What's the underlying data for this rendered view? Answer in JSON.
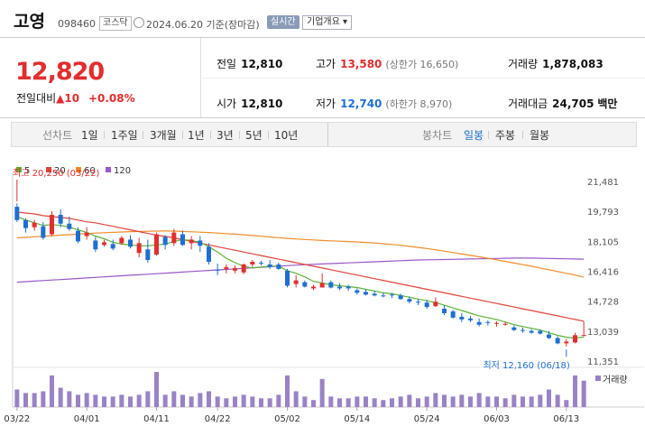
{
  "header": {
    "name": "고영",
    "code": "098460",
    "market": "코스닥",
    "date": "2024.06.20 기준(장마감)",
    "realtime": "실시간",
    "overview": "기업개요 ▾"
  },
  "price": {
    "current": "12,820",
    "change_label": "전일대비",
    "change_arrow": "▲",
    "change": "10",
    "change_pct": "+0.08%"
  },
  "stats": {
    "prev_close_label": "전일",
    "prev_close": "12,810",
    "open_label": "시가",
    "open": "12,810",
    "high_label": "고가",
    "high": "13,580",
    "upper_limit": "(상한가 16,650)",
    "low_label": "저가",
    "low": "12,740",
    "lower_limit": "(하한가 8,970)",
    "volume_label": "거래량",
    "volume": "1,878,083",
    "amount_label": "거래대금",
    "amount": "24,705",
    "amount_unit": "백만"
  },
  "toolbar": {
    "line_chart": "선차트",
    "periods": [
      "1일",
      "1주일",
      "3개월",
      "1년",
      "3년",
      "5년",
      "10년"
    ],
    "candle_chart": "봉차트",
    "candle_periods": [
      "일봉",
      "주봉",
      "월봉"
    ],
    "selected_candle": "일봉"
  },
  "colors": {
    "up": "#e12e2e",
    "down": "#1f6fd1",
    "ma5": "#5bb336",
    "ma20": "#e0453a",
    "ma60": "#f08c28",
    "ma120": "#9a59c9",
    "volume": "#9a82c6"
  },
  "chart_data": {
    "type": "candlestick",
    "legend": [
      "5",
      "20",
      "60",
      "120"
    ],
    "y_ticks": [
      "21,481",
      "19,793",
      "18,105",
      "16,416",
      "14,728",
      "13,039",
      "11,351"
    ],
    "y_range": [
      11351,
      21481
    ],
    "x_tick_labels": [
      "03/22",
      "04/01",
      "04/11",
      "04/22",
      "05/02",
      "05/14",
      "05/24",
      "06/03",
      "06/13"
    ],
    "x_tick_index": [
      0,
      8,
      16,
      23,
      31,
      39,
      47,
      55,
      63
    ],
    "high_annotation": "최고 20,250 (03/22)",
    "low_annotation": "최저 12,160 (06/18)",
    "volume_label": "거래량",
    "candles": [
      [
        20050,
        20250,
        19200,
        19300
      ],
      [
        19300,
        19400,
        18600,
        18850
      ],
      [
        18900,
        19300,
        18700,
        19150
      ],
      [
        18950,
        19200,
        18200,
        18300
      ],
      [
        18500,
        19800,
        18400,
        19600
      ],
      [
        19600,
        19900,
        18900,
        19100
      ],
      [
        19100,
        19500,
        18700,
        18800
      ],
      [
        18700,
        18900,
        18000,
        18100
      ],
      [
        18400,
        18900,
        18200,
        18600
      ],
      [
        18150,
        18350,
        17500,
        17650
      ],
      [
        17900,
        18200,
        17800,
        18050
      ],
      [
        17950,
        18200,
        17600,
        17700
      ],
      [
        18000,
        18400,
        17900,
        18300
      ],
      [
        18200,
        18450,
        17700,
        17800
      ],
      [
        17450,
        18300,
        17200,
        18000
      ],
      [
        17650,
        18200,
        16900,
        17050
      ],
      [
        17350,
        18600,
        17300,
        18500
      ],
      [
        18350,
        18450,
        17650,
        17900
      ],
      [
        18000,
        18800,
        17850,
        18600
      ],
      [
        18500,
        18700,
        17850,
        17900
      ],
      [
        18000,
        18400,
        17650,
        18200
      ],
      [
        18150,
        18400,
        17500,
        17850
      ],
      [
        17800,
        18000,
        16800,
        16950
      ],
      [
        16500,
        16850,
        16200,
        16450
      ],
      [
        16550,
        16800,
        16300,
        16650
      ],
      [
        16450,
        16750,
        16300,
        16600
      ],
      [
        16350,
        16850,
        16250,
        16800
      ],
      [
        16800,
        17050,
        16650,
        16950
      ],
      [
        16900,
        17000,
        16750,
        16850
      ],
      [
        16800,
        17050,
        16550,
        16650
      ],
      [
        16800,
        16900,
        16500,
        16550
      ],
      [
        16450,
        16550,
        15500,
        15600
      ],
      [
        15700,
        16200,
        15500,
        15900
      ],
      [
        15800,
        15900,
        15500,
        15550
      ],
      [
        15450,
        15650,
        15350,
        15550
      ],
      [
        15500,
        16300,
        15500,
        15750
      ],
      [
        15800,
        15900,
        15450,
        15500
      ],
      [
        15550,
        15750,
        15350,
        15450
      ],
      [
        15550,
        15650,
        15300,
        15450
      ],
      [
        15350,
        15450,
        15100,
        15200
      ],
      [
        15250,
        15400,
        15050,
        15100
      ],
      [
        15150,
        15300,
        15000,
        15050
      ],
      [
        15050,
        15200,
        14950,
        15000
      ],
      [
        15100,
        15200,
        14900,
        15050
      ],
      [
        15050,
        15150,
        14800,
        14850
      ],
      [
        14850,
        15000,
        14600,
        14700
      ],
      [
        14700,
        14850,
        14500,
        14650
      ],
      [
        14650,
        14800,
        14300,
        14400
      ],
      [
        14450,
        14950,
        14400,
        14700
      ],
      [
        14300,
        14500,
        13950,
        14050
      ],
      [
        14150,
        14250,
        13750,
        13800
      ],
      [
        13850,
        14050,
        13550,
        13700
      ],
      [
        13750,
        13900,
        13550,
        13650
      ],
      [
        13550,
        13750,
        13300,
        13400
      ],
      [
        13550,
        13650,
        13350,
        13500
      ],
      [
        13450,
        13600,
        13300,
        13500
      ],
      [
        13400,
        13550,
        13350,
        13450
      ],
      [
        13250,
        13350,
        13050,
        13100
      ],
      [
        13100,
        13250,
        12950,
        13050
      ],
      [
        13050,
        13150,
        12900,
        12950
      ],
      [
        13050,
        13150,
        12850,
        12900
      ],
      [
        12850,
        13050,
        12600,
        12650
      ],
      [
        12650,
        12750,
        12300,
        12350
      ],
      [
        12350,
        12600,
        12160,
        12450
      ],
      [
        12400,
        12950,
        12350,
        12810
      ],
      [
        12810,
        13580,
        12740,
        12820
      ]
    ],
    "ma5": [
      19500,
      19300,
      19150,
      19000,
      19050,
      19000,
      18900,
      18750,
      18600,
      18400,
      18250,
      18050,
      17950,
      17900,
      17850,
      17850,
      17900,
      17950,
      18100,
      18200,
      18150,
      18050,
      17800,
      17500,
      17150,
      16900,
      16700,
      16600,
      16650,
      16700,
      16700,
      16450,
      16300,
      16100,
      15850,
      15750,
      15650,
      15600,
      15550,
      15500,
      15400,
      15300,
      15200,
      15150,
      15050,
      14950,
      14850,
      14750,
      14650,
      14500,
      14350,
      14200,
      14050,
      13900,
      13800,
      13700,
      13550,
      13400,
      13300,
      13200,
      13100,
      12950,
      12800,
      12700,
      12650,
      12700
    ],
    "ma20": [
      19750,
      19700,
      19650,
      19550,
      19500,
      19450,
      19400,
      19300,
      19200,
      19150,
      19050,
      18950,
      18850,
      18750,
      18650,
      18550,
      18450,
      18380,
      18300,
      18200,
      18100,
      18000,
      17900,
      17800,
      17700,
      17600,
      17500,
      17400,
      17300,
      17200,
      17100,
      17000,
      16900,
      16800,
      16700,
      16600,
      16500,
      16400,
      16300,
      16200,
      16100,
      16000,
      15900,
      15800,
      15700,
      15600,
      15500,
      15400,
      15300,
      15200,
      15100,
      15000,
      14900,
      14800,
      14700,
      14600,
      14500,
      14400,
      14300,
      14200,
      14100,
      14000,
      13900,
      13800,
      13700,
      13600
    ],
    "ma60": [
      18300,
      18330,
      18360,
      18390,
      18420,
      18450,
      18480,
      18510,
      18540,
      18570,
      18590,
      18610,
      18630,
      18650,
      18660,
      18670,
      18680,
      18690,
      18680,
      18660,
      18640,
      18620,
      18600,
      18570,
      18540,
      18510,
      18470,
      18430,
      18390,
      18350,
      18310,
      18270,
      18240,
      18210,
      18180,
      18150,
      18130,
      18110,
      18090,
      18070,
      18040,
      18010,
      17970,
      17930,
      17880,
      17820,
      17760,
      17700,
      17630,
      17550,
      17470,
      17390,
      17310,
      17230,
      17150,
      17060,
      16970,
      16880,
      16790,
      16700,
      16600,
      16500,
      16400,
      16300,
      16200,
      16080
    ],
    "ma120": [
      15800,
      15830,
      15860,
      15890,
      15920,
      15950,
      15980,
      16010,
      16040,
      16070,
      16100,
      16130,
      16160,
      16190,
      16220,
      16250,
      16280,
      16310,
      16340,
      16370,
      16400,
      16430,
      16460,
      16490,
      16520,
      16550,
      16580,
      16610,
      16640,
      16670,
      16700,
      16730,
      16760,
      16790,
      16810,
      16830,
      16850,
      16870,
      16890,
      16910,
      16930,
      16950,
      16970,
      16990,
      17010,
      17030,
      17050,
      17060,
      17070,
      17080,
      17090,
      17100,
      17110,
      17120,
      17130,
      17140,
      17150,
      17160,
      17160,
      17160,
      17150,
      17140,
      17130,
      17120,
      17110,
      17100
    ],
    "volume": [
      0.5,
      0.4,
      0.4,
      0.45,
      0.9,
      0.55,
      0.45,
      0.35,
      0.4,
      0.35,
      0.3,
      0.3,
      0.35,
      0.3,
      0.35,
      0.45,
      1.0,
      0.35,
      0.45,
      0.35,
      0.3,
      0.4,
      0.45,
      0.3,
      0.25,
      0.3,
      0.35,
      0.3,
      0.25,
      0.25,
      0.35,
      0.9,
      0.45,
      0.3,
      0.2,
      0.8,
      0.3,
      0.25,
      0.25,
      0.3,
      0.3,
      0.25,
      0.2,
      0.25,
      0.3,
      0.35,
      0.25,
      0.3,
      0.4,
      0.35,
      0.3,
      0.35,
      0.3,
      0.4,
      0.3,
      0.3,
      0.25,
      0.35,
      0.3,
      0.3,
      0.35,
      0.5,
      0.35,
      0.2,
      0.9,
      0.75
    ]
  }
}
